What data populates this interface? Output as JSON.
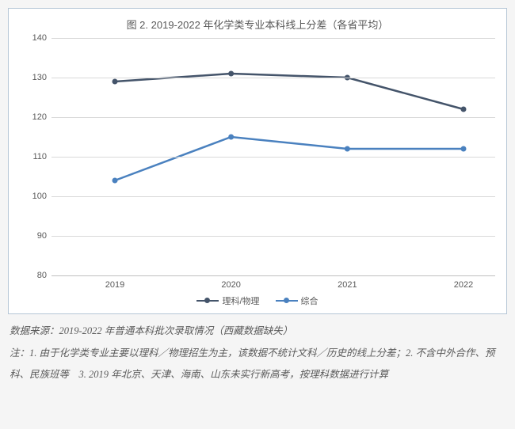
{
  "chart": {
    "type": "line",
    "title": "图 2. 2019-2022 年化学类专业本科线上分差（各省平均）",
    "title_fontsize": 13,
    "title_color": "#595959",
    "background_color": "#ffffff",
    "border_color": "#b5c6d6",
    "grid_color": "#d9d9d9",
    "axis_line_color": "#bfbfbf",
    "tick_color": "#595959",
    "tick_fontsize": 11,
    "ylim": [
      80,
      140
    ],
    "ytick_step": 10,
    "yticks": [
      80,
      90,
      100,
      110,
      120,
      130,
      140
    ],
    "categories": [
      "2019",
      "2020",
      "2021",
      "2022"
    ],
    "series": [
      {
        "name": "理科/物理",
        "color": "#44546a",
        "line_width": 2.5,
        "marker": "circle",
        "marker_size": 7,
        "values": [
          129,
          131,
          130,
          122
        ]
      },
      {
        "name": "综合",
        "color": "#4a81bf",
        "line_width": 2.5,
        "marker": "circle",
        "marker_size": 7,
        "values": [
          104,
          115,
          112,
          112
        ]
      }
    ],
    "legend_position": "bottom"
  },
  "footer": {
    "source_line": "数据来源：2019-2022 年普通本科批次录取情况（西藏数据缺失）",
    "note_line": "注：1. 由于化学类专业主要以理科／物理招生为主，该数据不统计文科／历史的线上分差；2. 不含中外合作、预科、民族班等　3. 2019 年北京、天津、海南、山东未实行新高考，按理科数据进行计算"
  }
}
